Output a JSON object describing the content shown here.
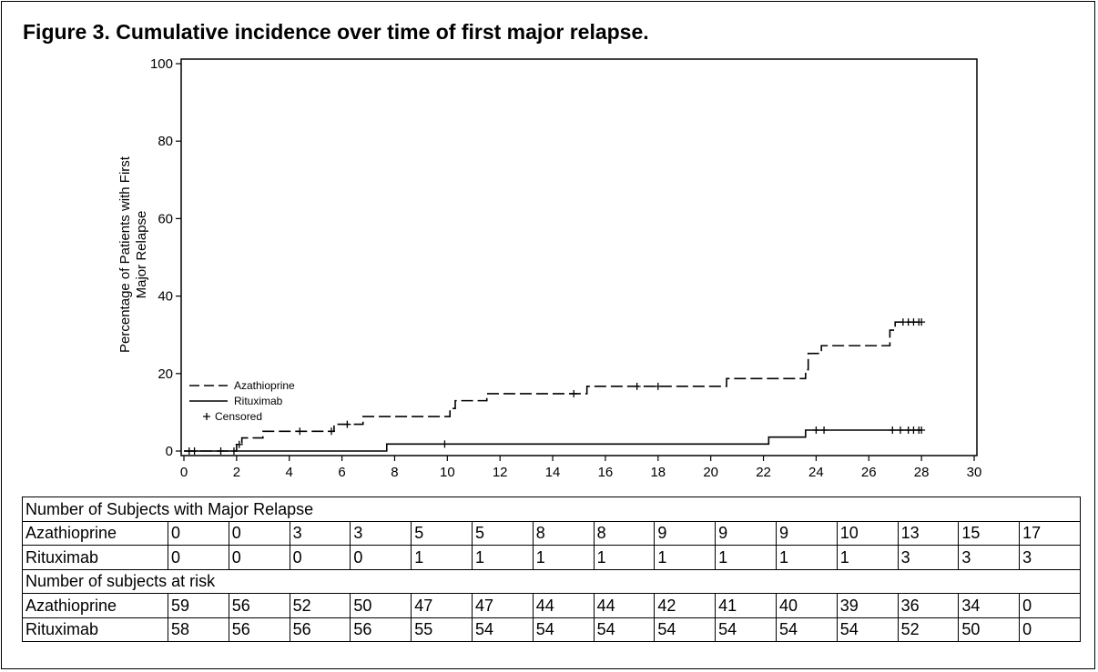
{
  "figure_title": "Figure 3. Cumulative incidence over time of first major relapse.",
  "chart_data": {
    "type": "line",
    "ylabel_lines": [
      "Percentage of Patients with First",
      "Major Relapse"
    ],
    "xlim": [
      0,
      30
    ],
    "ylim": [
      0,
      100
    ],
    "x_ticks": [
      0,
      2,
      4,
      6,
      8,
      10,
      12,
      14,
      16,
      18,
      20,
      22,
      24,
      26,
      28,
      30
    ],
    "y_ticks": [
      0,
      20,
      40,
      60,
      80,
      100
    ],
    "legend": [
      {
        "label": "Azathioprine",
        "style": "dashed"
      },
      {
        "label": "Rituximab",
        "style": "solid"
      },
      {
        "label": "Censored",
        "style": "plus"
      }
    ],
    "series": [
      {
        "name": "Azathioprine",
        "style": "dashed",
        "steps": [
          [
            0,
            0
          ],
          [
            2.0,
            1.7
          ],
          [
            2.2,
            3.4
          ],
          [
            2.6,
            3.4
          ],
          [
            3.0,
            5.1
          ],
          [
            5.7,
            6.9
          ],
          [
            6.8,
            8.9
          ],
          [
            10.1,
            11.0
          ],
          [
            10.3,
            13.0
          ],
          [
            11.5,
            14.8
          ],
          [
            15.3,
            16.7
          ],
          [
            20.6,
            18.7
          ],
          [
            23.6,
            21.0
          ],
          [
            23.7,
            25.2
          ],
          [
            24.2,
            27.2
          ],
          [
            26.8,
            31.2
          ],
          [
            27.0,
            33.3
          ],
          [
            28.0,
            33.3
          ]
        ],
        "censored": [
          [
            0.2,
            0
          ],
          [
            0.4,
            0
          ],
          [
            1.4,
            0
          ],
          [
            1.9,
            0
          ],
          [
            2.1,
            1.7
          ],
          [
            4.4,
            5.1
          ],
          [
            5.6,
            5.1
          ],
          [
            6.2,
            6.9
          ],
          [
            14.8,
            14.8
          ],
          [
            17.2,
            16.7
          ],
          [
            18.0,
            16.7
          ],
          [
            27.3,
            33.3
          ],
          [
            27.5,
            33.3
          ],
          [
            27.7,
            33.3
          ],
          [
            27.9,
            33.3
          ],
          [
            28.0,
            33.3
          ]
        ]
      },
      {
        "name": "Rituximab",
        "style": "solid",
        "steps": [
          [
            0,
            0
          ],
          [
            7.7,
            1.8
          ],
          [
            22.2,
            3.6
          ],
          [
            23.6,
            5.4
          ],
          [
            28.0,
            5.4
          ]
        ],
        "censored": [
          [
            9.9,
            1.8
          ],
          [
            24.0,
            5.4
          ],
          [
            24.3,
            5.4
          ],
          [
            26.9,
            5.4
          ],
          [
            27.2,
            5.4
          ],
          [
            27.5,
            5.4
          ],
          [
            27.7,
            5.4
          ],
          [
            27.9,
            5.4
          ],
          [
            28.0,
            5.4
          ]
        ]
      }
    ]
  },
  "table": {
    "section1_title": "Number of Subjects with Major Relapse",
    "section2_title": "Number of subjects at risk",
    "relapse": [
      {
        "label": "Azathioprine",
        "values": [
          "0",
          "0",
          "3",
          "3",
          "5",
          "5",
          "8",
          "8",
          "9",
          "9",
          "9",
          "10",
          "13",
          "15",
          "17"
        ]
      },
      {
        "label": "Rituximab",
        "values": [
          "0",
          "0",
          "0",
          "0",
          "1",
          "1",
          "1",
          "1",
          "1",
          "1",
          "1",
          "1",
          "3",
          "3",
          "3"
        ]
      }
    ],
    "at_risk": [
      {
        "label": "Azathioprine",
        "values": [
          "59",
          "56",
          "52",
          "50",
          "47",
          "47",
          "44",
          "44",
          "42",
          "41",
          "40",
          "39",
          "36",
          "34",
          "0"
        ]
      },
      {
        "label": "Rituximab",
        "values": [
          "58",
          "56",
          "56",
          "56",
          "55",
          "54",
          "54",
          "54",
          "54",
          "54",
          "54",
          "54",
          "52",
          "50",
          "0"
        ]
      }
    ]
  }
}
